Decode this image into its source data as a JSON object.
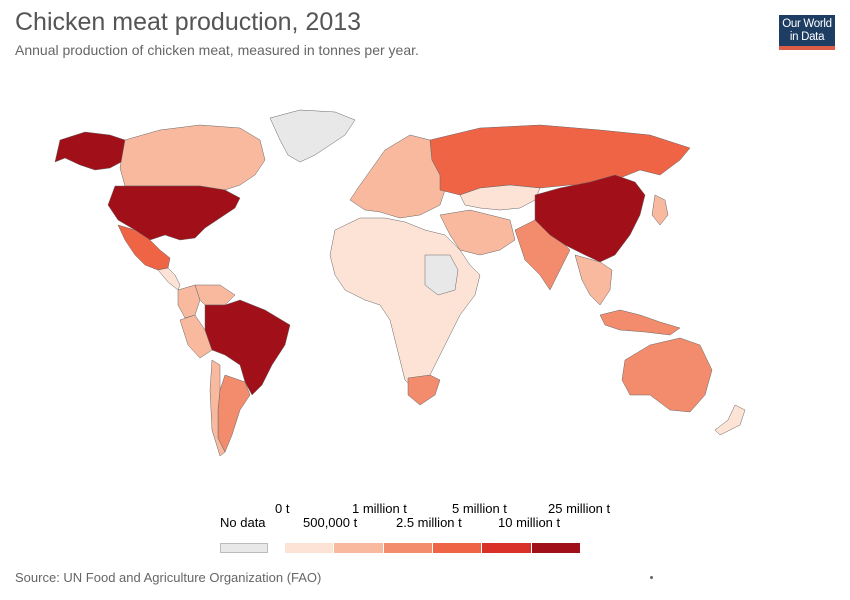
{
  "title": "Chicken meat production, 2013",
  "subtitle": "Annual production of chicken meat, measured in tonnes per year.",
  "logo": {
    "line1": "Our World",
    "line2": "in Data",
    "bg": "#1d3d63",
    "accent": "#dc5e47"
  },
  "legend": {
    "no_data_label": "No data",
    "no_data_color": "#e8e8e8",
    "bins_top": [
      "0 t",
      "1 million t",
      "5 million t",
      "25 million t"
    ],
    "bins_bottom": [
      "500,000 t",
      "2.5 million t",
      "10 million t"
    ],
    "colors": [
      "#fde3d6",
      "#f8b99e",
      "#f38c6d",
      "#f06446",
      "#d93027",
      "#a10f19"
    ]
  },
  "source": "Source: UN Food and Agriculture Organization (FAO)",
  "map": {
    "ocean_color": "#ffffff",
    "border_color": "#666666",
    "regions": [
      {
        "name": "Greenland",
        "level": "nodata"
      },
      {
        "name": "Alaska",
        "level": 5
      },
      {
        "name": "Canada",
        "level": 1
      },
      {
        "name": "United States",
        "level": 5
      },
      {
        "name": "Mexico",
        "level": 3
      },
      {
        "name": "Central America",
        "level": 0
      },
      {
        "name": "Colombia",
        "level": 1
      },
      {
        "name": "Venezuela",
        "level": 1
      },
      {
        "name": "Peru",
        "level": 1
      },
      {
        "name": "Brazil",
        "level": 5
      },
      {
        "name": "Argentina",
        "level": 2
      },
      {
        "name": "Chile",
        "level": 1
      },
      {
        "name": "Europe",
        "level": 1
      },
      {
        "name": "Russia",
        "level": 3
      },
      {
        "name": "Kazakhstan",
        "level": 0
      },
      {
        "name": "Iran",
        "level": 1
      },
      {
        "name": "India",
        "level": 2
      },
      {
        "name": "China",
        "level": 5
      },
      {
        "name": "Southeast Asia",
        "level": 1
      },
      {
        "name": "Indonesia",
        "level": 2
      },
      {
        "name": "Japan",
        "level": 1
      },
      {
        "name": "Africa",
        "level": 0
      },
      {
        "name": "Sudan",
        "level": "nodata"
      },
      {
        "name": "South Africa",
        "level": 2
      },
      {
        "name": "Australia",
        "level": 2
      },
      {
        "name": "New Zealand",
        "level": 0
      }
    ]
  }
}
